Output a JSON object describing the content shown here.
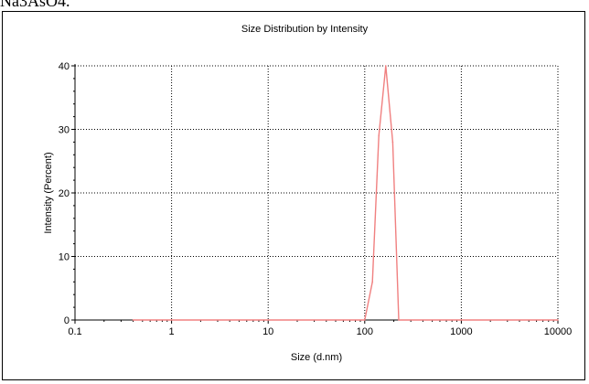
{
  "header_text": "Na3AsO4.",
  "chart_data": {
    "type": "line",
    "title": "Size Distribution by Intensity",
    "xlabel": "Size (d.nm)",
    "ylabel": "Intensity (Percent)",
    "x_scale": "log",
    "xlim": [
      0.1,
      10000
    ],
    "ylim": [
      0,
      40
    ],
    "x_ticks": [
      "0.1",
      "1",
      "10",
      "100",
      "1000",
      "10000"
    ],
    "y_ticks": [
      "0",
      "10",
      "20",
      "30",
      "40"
    ],
    "grid": true,
    "series": [
      {
        "color": "#f08080",
        "points": [
          {
            "x": 0.4,
            "y": 0
          },
          {
            "x": 100,
            "y": 0
          },
          {
            "x": 120,
            "y": 6
          },
          {
            "x": 140,
            "y": 29
          },
          {
            "x": 165,
            "y": 40
          },
          {
            "x": 195,
            "y": 28
          },
          {
            "x": 225,
            "y": 0
          },
          {
            "x": 10000,
            "y": 0
          }
        ]
      }
    ]
  }
}
